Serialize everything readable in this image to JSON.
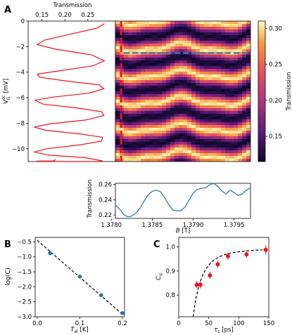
{
  "panel_labels": [
    "A",
    "B",
    "C"
  ],
  "colors": {
    "red": "#e8161b",
    "blue": "#2e7bb6",
    "dash": "#3d7fb5",
    "marker_blue": "#1f77b4"
  },
  "chart_data": [
    {
      "type": "line",
      "panel": "A-left",
      "title": "",
      "xlabel": "Transmission",
      "ylabel": "V_G^dc [mV]",
      "xlim": [
        0.12,
        0.31
      ],
      "ylim": [
        -11,
        0
      ],
      "xticks": [
        0.15,
        0.2,
        0.25
      ],
      "xtick_labels": [
        "0.15",
        "0.20",
        "0.25"
      ],
      "yticks": [
        0,
        -2,
        -4,
        -6,
        -8,
        -10
      ],
      "ytick_labels": [
        "0",
        "−2",
        "−4",
        "−6",
        "−8",
        "−10"
      ],
      "series": [
        {
          "x": [
            0.286,
            0.27,
            0.215,
            0.155,
            0.14,
            0.18,
            0.258,
            0.286,
            0.262,
            0.188,
            0.14,
            0.145,
            0.205,
            0.275,
            0.285,
            0.252,
            0.175,
            0.135,
            0.152,
            0.225,
            0.28,
            0.285,
            0.245,
            0.168,
            0.133,
            0.158,
            0.235,
            0.282,
            0.28,
            0.232,
            0.16,
            0.133,
            0.165,
            0.245,
            0.282,
            0.27,
            0.205,
            0.145,
            0.138,
            0.175,
            0.18
          ],
          "y": [
            -0.2,
            -0.55,
            -1.0,
            -1.5,
            -1.85,
            -2.2,
            -2.65,
            -3.1,
            -3.5,
            -3.9,
            -4.15,
            -4.4,
            -4.7,
            -5.0,
            -5.3,
            -5.65,
            -5.95,
            -6.2,
            -6.5,
            -6.8,
            -7.1,
            -7.4,
            -7.75,
            -8.05,
            -8.3,
            -8.55,
            -8.85,
            -9.1,
            -9.4,
            -9.7,
            -10.0,
            -10.25,
            -10.5,
            -10.7,
            -10.95,
            -11.0,
            -11.0,
            -10.98,
            -10.96,
            -10.95,
            -10.85
          ]
        }
      ]
    },
    {
      "type": "heatmap",
      "panel": "A-map",
      "colorbar_label": "Transmission",
      "colorbar_range": [
        0.115,
        0.31
      ],
      "colorbar_ticks": [
        0.15,
        0.2,
        0.25,
        0.3
      ],
      "colorbar_tick_labels": [
        "0.15",
        "0.20",
        "0.25",
        "0.30"
      ],
      "ylim": [
        -11,
        0
      ],
      "xlim": [
        1.37805,
        1.3797
      ],
      "vertical_cut_B": 1.37812,
      "horizontal_cut_V": -2.5
    },
    {
      "type": "line",
      "panel": "A-bottom",
      "xlabel": "B [T]",
      "ylabel": "Transmission",
      "xlim": [
        1.37805,
        1.3797
      ],
      "ylim": [
        0.2155,
        0.2615
      ],
      "xticks": [
        1.378,
        1.3785,
        1.379,
        1.3795
      ],
      "xtick_labels": [
        "1.3780",
        "1.3785",
        "1.3790",
        "1.3795"
      ],
      "yticks": [
        0.22,
        0.24,
        0.26
      ],
      "ytick_labels": [
        "0.22",
        "0.24",
        "0.26"
      ],
      "series": [
        {
          "x": [
            1.37805,
            1.3781,
            1.37815,
            1.3782,
            1.37825,
            1.3783,
            1.37835,
            1.3784,
            1.37845,
            1.3785,
            1.37855,
            1.3786,
            1.37865,
            1.3787,
            1.37875,
            1.3788,
            1.37885,
            1.3789,
            1.37895,
            1.379,
            1.37905,
            1.3791,
            1.37915,
            1.3792,
            1.37925,
            1.3793,
            1.37935,
            1.3794,
            1.37945,
            1.3795,
            1.37955,
            1.3796,
            1.37965,
            1.3797
          ],
          "y": [
            0.233,
            0.228,
            0.221,
            0.2175,
            0.2185,
            0.2225,
            0.229,
            0.238,
            0.246,
            0.251,
            0.2525,
            0.2505,
            0.243,
            0.234,
            0.2265,
            0.2255,
            0.2255,
            0.2305,
            0.2395,
            0.2485,
            0.2535,
            0.255,
            0.2555,
            0.2595,
            0.2615,
            0.2575,
            0.2515,
            0.2475,
            0.2525,
            0.2495,
            0.2455,
            0.2475,
            0.2525,
            0.2555
          ]
        }
      ]
    },
    {
      "type": "scatter",
      "panel": "B",
      "xlabel": "T_el [K]",
      "ylabel": "log(C)",
      "xlim": [
        -0.005,
        0.205
      ],
      "ylim": [
        -3.0,
        -0.35
      ],
      "xticks": [
        0.0,
        0.1,
        0.2
      ],
      "xtick_labels": [
        "0.0",
        "0.1",
        "0.2"
      ],
      "yticks": [
        -0.5,
        -1.0,
        -1.5,
        -2.0,
        -2.5,
        -3.0
      ],
      "ytick_labels": [
        "−0.5",
        "−1.0",
        "−1.5",
        "−2.0",
        "−2.5",
        "−3.0"
      ],
      "points": {
        "x": [
          0.03,
          0.1,
          0.15,
          0.2
        ],
        "y": [
          -0.88,
          -1.66,
          -2.28,
          -2.88
        ]
      },
      "fit_line": {
        "x": [
          0.0,
          0.2
        ],
        "y": [
          -0.45,
          -2.92
        ]
      }
    },
    {
      "type": "scatter",
      "panel": "C",
      "xlabel": "τ_c [ps]",
      "ylabel": "C_q",
      "xlim": [
        0,
        150
      ],
      "ylim": [
        0.71,
        1.04
      ],
      "xticks": [
        0,
        50,
        100,
        150
      ],
      "xtick_labels": [
        "0",
        "50",
        "100",
        "150"
      ],
      "yticks": [
        0.8,
        0.9,
        1.0
      ],
      "ytick_labels": [
        "0.8",
        "0.9",
        "1.0"
      ],
      "points": {
        "x": [
          30,
          36,
          52,
          65,
          82,
          113,
          145
        ],
        "y": [
          0.843,
          0.843,
          0.882,
          0.928,
          0.962,
          0.969,
          0.988
        ],
        "err": [
          0.015,
          0.015,
          0.015,
          0.015,
          0.015,
          0.015,
          0.02
        ]
      },
      "fit_curve": {
        "x": [
          24,
          26,
          28,
          30,
          33,
          36,
          40,
          45,
          50,
          55,
          60,
          70,
          80,
          90,
          100,
          110,
          120,
          130,
          140,
          145
        ],
        "y": [
          0.71,
          0.744,
          0.775,
          0.8,
          0.832,
          0.856,
          0.883,
          0.907,
          0.925,
          0.938,
          0.949,
          0.962,
          0.971,
          0.976,
          0.98,
          0.983,
          0.985,
          0.987,
          0.988,
          0.989
        ]
      }
    }
  ]
}
